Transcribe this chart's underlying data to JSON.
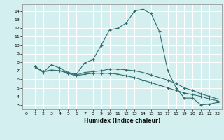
{
  "xlabel": "Humidex (Indice chaleur)",
  "background_color": "#d4efef",
  "grid_color": "#ffffff",
  "line_color": "#2d6e6e",
  "xlim": [
    -0.5,
    23.5
  ],
  "ylim": [
    2.5,
    14.8
  ],
  "xticks": [
    0,
    1,
    2,
    3,
    4,
    5,
    6,
    7,
    8,
    9,
    10,
    11,
    12,
    13,
    14,
    15,
    16,
    17,
    18,
    19,
    20,
    21,
    22,
    23
  ],
  "yticks": [
    3,
    4,
    5,
    6,
    7,
    8,
    9,
    10,
    11,
    12,
    13,
    14
  ],
  "line1_x": [
    1,
    2,
    3,
    4,
    5,
    6,
    7,
    8,
    9,
    10,
    11,
    12,
    13,
    14,
    15,
    16,
    17,
    18,
    19,
    20,
    21,
    22,
    23
  ],
  "line1_y": [
    7.5,
    6.8,
    7.7,
    7.3,
    6.8,
    6.6,
    7.9,
    8.3,
    10.0,
    11.8,
    12.0,
    12.6,
    14.0,
    14.2,
    13.7,
    11.6,
    7.0,
    5.0,
    3.8,
    3.8,
    3.0,
    3.1,
    3.3
  ],
  "line2_x": [
    1,
    2,
    3,
    4,
    5,
    6,
    7,
    8,
    9,
    10,
    11,
    12,
    13,
    14,
    15,
    16,
    17,
    18,
    19,
    20,
    21,
    22,
    23
  ],
  "line2_y": [
    7.5,
    6.9,
    7.0,
    7.0,
    6.8,
    6.5,
    6.8,
    6.9,
    7.0,
    7.2,
    7.2,
    7.1,
    7.0,
    6.8,
    6.5,
    6.2,
    5.9,
    5.5,
    5.0,
    4.7,
    4.3,
    4.0,
    3.7
  ],
  "line3_x": [
    1,
    2,
    3,
    4,
    5,
    6,
    7,
    8,
    9,
    10,
    11,
    12,
    13,
    14,
    15,
    16,
    17,
    18,
    19,
    20,
    21,
    22,
    23
  ],
  "line3_y": [
    7.5,
    6.9,
    7.1,
    7.0,
    6.7,
    6.4,
    6.6,
    6.7,
    6.7,
    6.7,
    6.6,
    6.4,
    6.2,
    5.9,
    5.6,
    5.3,
    5.0,
    4.7,
    4.4,
    4.2,
    4.0,
    3.7,
    3.5
  ]
}
